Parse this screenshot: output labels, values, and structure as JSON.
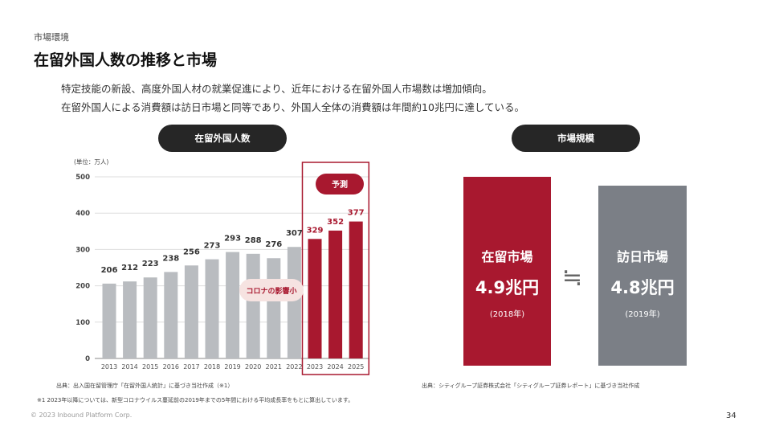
{
  "section": "市場環境",
  "title": "在留外国人数の推移と市場",
  "lead": [
    "特定技能の新設、高度外国人材の就業促進により、近年における在留外国人市場数は増加傾向。",
    "在留外国人による消費額は訪日市場と同等であり、外国人全体の消費額は年間約10兆円に達している。"
  ],
  "left_pill": "在留外国人数",
  "right_pill": "市場規模",
  "chart_data": {
    "type": "bar",
    "unit_label": "(単位：万人)",
    "categories": [
      "2013",
      "2014",
      "2015",
      "2016",
      "2017",
      "2018",
      "2019",
      "2020",
      "2021",
      "2022",
      "2023",
      "2024",
      "2025"
    ],
    "values": [
      206,
      212,
      223,
      238,
      256,
      273,
      293,
      288,
      276,
      307,
      329,
      352,
      377
    ],
    "forecast_from": "2023",
    "yticks": [
      0,
      100,
      200,
      300,
      400,
      500
    ],
    "ylim": [
      0,
      500
    ],
    "grid": true,
    "forecast_label": "予測",
    "annotation": "コロナの影響小",
    "colors": {
      "actual": "#b9bcc0",
      "forecast": "#a8182f"
    }
  },
  "market": {
    "left": {
      "name": "在留市場",
      "value": "4.9兆円",
      "year": "(2018年)",
      "color": "#a8182f"
    },
    "symbol": "≒",
    "right": {
      "name": "訪日市場",
      "value": "4.8兆円",
      "year": "(2019年)",
      "color": "#7b7f86"
    }
  },
  "sources": {
    "left": "出典：出入国在留管理庁「在留外国人統計」に基づき当社作成（※1）",
    "right": "出典：シティグループ証券株式会社「シティグループ証券レポート」に基づき当社作成",
    "note": "※1  2023年以降については、新型コロナウイルス蔓延前の2019年までの5年間における平均成長率をもとに算出しています。"
  },
  "footer": {
    "copyright": "© 2023 Inbound Platform Corp.",
    "page": "34"
  }
}
